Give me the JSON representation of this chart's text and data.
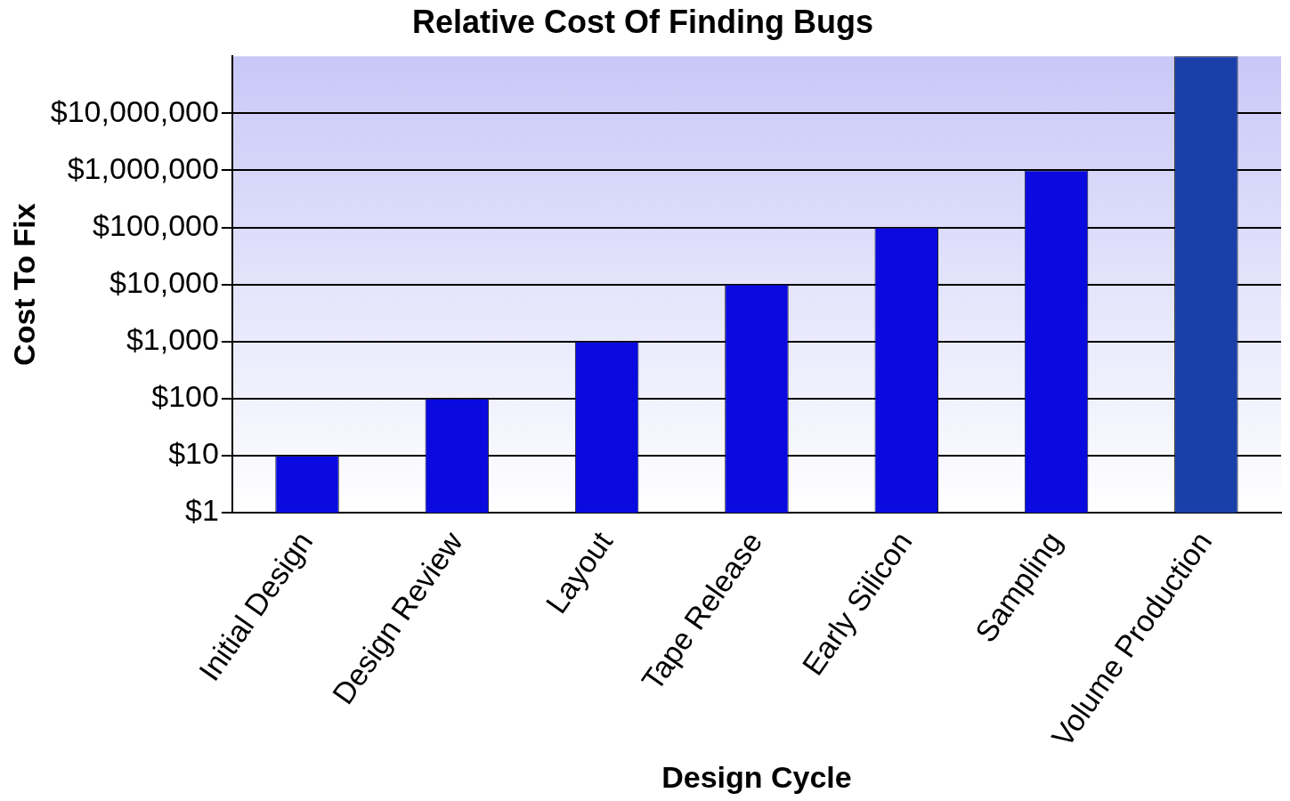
{
  "chart_data": {
    "type": "bar",
    "title": "Relative Cost Of Finding Bugs",
    "xlabel": "Design Cycle",
    "ylabel": "Cost To Fix",
    "categories": [
      "Initial Design",
      "Design Review",
      "Layout",
      "Tape Release",
      "Early Silicon",
      "Sampling",
      "Volume Production"
    ],
    "values": [
      10,
      100,
      1000,
      10000,
      100000,
      1000000,
      100000000
    ],
    "colors": [
      "#0a0ae0",
      "#0a0ae0",
      "#0a0ae0",
      "#0a0ae0",
      "#0a0ae0",
      "#0a0ae0",
      "#1a3fa8"
    ],
    "log": true,
    "ylim": [
      1,
      100000000
    ],
    "yticks": [
      {
        "value": 1,
        "label": "$1"
      },
      {
        "value": 10,
        "label": "$10"
      },
      {
        "value": 100,
        "label": "$100"
      },
      {
        "value": 1000,
        "label": "$1,000"
      },
      {
        "value": 10000,
        "label": "$10,000"
      },
      {
        "value": 100000,
        "label": "$100,000"
      },
      {
        "value": 1000000,
        "label": "$1,000,000"
      },
      {
        "value": 10000000,
        "label": "$10,000,000"
      }
    ],
    "grid": "y",
    "legend": false
  }
}
